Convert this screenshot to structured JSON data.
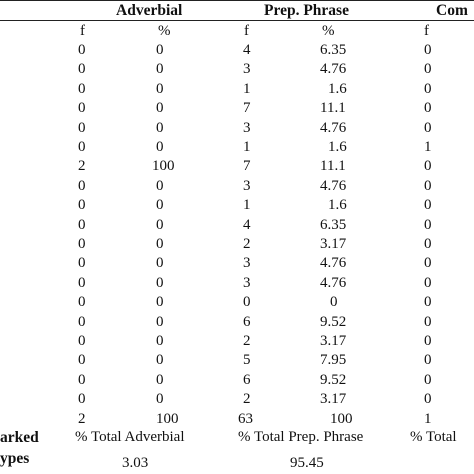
{
  "table": {
    "headers": {
      "adverbial": "Adverbial",
      "prep_phrase": "Prep. Phrase",
      "comp": "Com"
    },
    "subheaders": {
      "adv_f": "f",
      "adv_pct": "%",
      "prep_f": "f",
      "prep_pct": "%",
      "comp_f": "f"
    },
    "rows": [
      {
        "adv_f": "0",
        "adv_pct": "0",
        "prep_f": "4",
        "prep_pct": "6.35",
        "comp_f": "0"
      },
      {
        "adv_f": "0",
        "adv_pct": "0",
        "prep_f": "3",
        "prep_pct": "4.76",
        "comp_f": "0"
      },
      {
        "adv_f": "0",
        "adv_pct": "0",
        "prep_f": "1",
        "prep_pct": "1.6",
        "comp_f": "0"
      },
      {
        "adv_f": "0",
        "adv_pct": "0",
        "prep_f": "7",
        "prep_pct": "11.1",
        "comp_f": "0"
      },
      {
        "adv_f": "0",
        "adv_pct": "0",
        "prep_f": "3",
        "prep_pct": "4.76",
        "comp_f": "0"
      },
      {
        "adv_f": "0",
        "adv_pct": "0",
        "prep_f": "1",
        "prep_pct": "1.6",
        "comp_f": "1"
      },
      {
        "adv_f": "2",
        "adv_pct": "100",
        "prep_f": "7",
        "prep_pct": "11.1",
        "comp_f": "0"
      },
      {
        "adv_f": "0",
        "adv_pct": "0",
        "prep_f": "3",
        "prep_pct": "4.76",
        "comp_f": "0"
      },
      {
        "adv_f": "0",
        "adv_pct": "0",
        "prep_f": "1",
        "prep_pct": "1.6",
        "comp_f": "0"
      },
      {
        "adv_f": "0",
        "adv_pct": "0",
        "prep_f": "4",
        "prep_pct": "6.35",
        "comp_f": "0"
      },
      {
        "adv_f": "0",
        "adv_pct": "0",
        "prep_f": "2",
        "prep_pct": "3.17",
        "comp_f": "0"
      },
      {
        "adv_f": "0",
        "adv_pct": "0",
        "prep_f": "3",
        "prep_pct": "4.76",
        "comp_f": "0"
      },
      {
        "adv_f": "0",
        "adv_pct": "0",
        "prep_f": "3",
        "prep_pct": "4.76",
        "comp_f": "0"
      },
      {
        "adv_f": "0",
        "adv_pct": "0",
        "prep_f": "0",
        "prep_pct": "0",
        "comp_f": "0"
      },
      {
        "adv_f": "0",
        "adv_pct": "0",
        "prep_f": "6",
        "prep_pct": "9.52",
        "comp_f": "0"
      },
      {
        "adv_f": "0",
        "adv_pct": "0",
        "prep_f": "2",
        "prep_pct": "3.17",
        "comp_f": "0"
      },
      {
        "adv_f": "0",
        "adv_pct": "0",
        "prep_f": "5",
        "prep_pct": "7.95",
        "comp_f": "0"
      },
      {
        "adv_f": "0",
        "adv_pct": "0",
        "prep_f": "6",
        "prep_pct": "9.52",
        "comp_f": "0"
      },
      {
        "adv_f": "0",
        "adv_pct": "0",
        "prep_f": "2",
        "prep_pct": "3.17",
        "comp_f": "0"
      }
    ],
    "totals": {
      "adv_f": "2",
      "adv_pct": "100",
      "prep_f": "63",
      "prep_pct": "100",
      "comp_f": "1"
    },
    "footer": {
      "left_line1": "arked",
      "left_line2": "ypes",
      "adv_total_label": "% Total Adverbial",
      "prep_total_label": "% Total Prep. Phrase",
      "comp_total_label": "%  Total",
      "adv_total_value": "3.03",
      "prep_total_value": "95.45"
    }
  }
}
